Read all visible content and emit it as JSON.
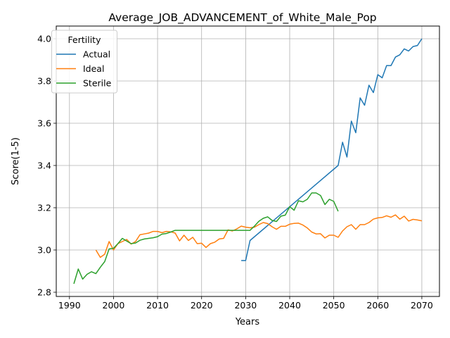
{
  "chart_data": {
    "type": "line",
    "title": "Average_JOB_ADVANCEMENT_of_White_Male_Pop",
    "xlabel": "Years",
    "ylabel": "Score(1-5)",
    "xlim": [
      1987,
      2074
    ],
    "ylim": [
      2.78,
      4.06
    ],
    "xticks": [
      1990,
      2000,
      2010,
      2020,
      2030,
      2040,
      2050,
      2060,
      2070
    ],
    "yticks": [
      2.8,
      3.0,
      3.2,
      3.4,
      3.6,
      3.8,
      4.0
    ],
    "ytick_labels": [
      "2.8",
      "3.0",
      "3.2",
      "3.4",
      "3.6",
      "3.8",
      "4.0"
    ],
    "grid": true,
    "legend": {
      "title": "Fertility",
      "placement": "upper-left"
    },
    "series": [
      {
        "name": "Actual",
        "color": "#1f77b4",
        "x": [
          2029,
          2030,
          2031,
          2051,
          2052,
          2053,
          2054,
          2055,
          2056,
          2057,
          2058,
          2059,
          2060,
          2061,
          2062,
          2063,
          2064,
          2065,
          2066,
          2067,
          2068,
          2069,
          2070
        ],
        "y": [
          2.95,
          2.95,
          3.045,
          3.4,
          3.51,
          3.44,
          3.61,
          3.555,
          3.72,
          3.685,
          3.78,
          3.745,
          3.83,
          3.815,
          3.873,
          3.873,
          3.913,
          3.924,
          3.952,
          3.942,
          3.963,
          3.968,
          4.0
        ]
      },
      {
        "name": "Ideal",
        "color": "#ff7f0e",
        "x": [
          1996,
          1997,
          1998,
          1999,
          2000,
          2001,
          2002,
          2003,
          2004,
          2005,
          2006,
          2007,
          2008,
          2009,
          2010,
          2011,
          2012,
          2013,
          2014,
          2015,
          2016,
          2017,
          2018,
          2019,
          2020,
          2021,
          2022,
          2023,
          2024,
          2025,
          2026,
          2027,
          2028,
          2029,
          2030,
          2031,
          2032,
          2033,
          2034,
          2035,
          2036,
          2037,
          2038,
          2039,
          2040,
          2041,
          2042,
          2043,
          2044,
          2045,
          2046,
          2047,
          2048,
          2049,
          2050,
          2051,
          2052,
          2053,
          2054,
          2055,
          2056,
          2057,
          2058,
          2059,
          2060,
          2061,
          2062,
          2063,
          2064,
          2065,
          2066,
          2067,
          2068,
          2069,
          2070
        ],
        "y": [
          3.0,
          2.965,
          2.98,
          3.04,
          3.0,
          3.03,
          3.04,
          3.05,
          3.028,
          3.04,
          3.072,
          3.076,
          3.08,
          3.088,
          3.088,
          3.082,
          3.088,
          3.086,
          3.08,
          3.043,
          3.07,
          3.045,
          3.06,
          3.03,
          3.032,
          3.012,
          3.03,
          3.037,
          3.052,
          3.055,
          3.095,
          3.09,
          3.1,
          3.113,
          3.108,
          3.105,
          3.108,
          3.12,
          3.13,
          3.125,
          3.11,
          3.098,
          3.112,
          3.112,
          3.122,
          3.126,
          3.127,
          3.118,
          3.104,
          3.085,
          3.076,
          3.077,
          3.057,
          3.07,
          3.07,
          3.06,
          3.09,
          3.11,
          3.12,
          3.098,
          3.12,
          3.12,
          3.13,
          3.146,
          3.152,
          3.154,
          3.162,
          3.155,
          3.166,
          3.146,
          3.16,
          3.137,
          3.145,
          3.142,
          3.138
        ]
      },
      {
        "name": "Sterile",
        "color": "#2ca02c",
        "x": [
          1991,
          1992,
          1993,
          1994,
          1995,
          1996,
          1997,
          1998,
          1999,
          2000,
          2001,
          2002,
          2003,
          2004,
          2005,
          2006,
          2007,
          2008,
          2009,
          2010,
          2011,
          2012,
          2013,
          2014,
          2015,
          2020,
          2025,
          2026,
          2027,
          2028,
          2029,
          2030,
          2031,
          2032,
          2033,
          2034,
          2035,
          2036,
          2037,
          2038,
          2039,
          2040,
          2041,
          2042,
          2043,
          2044,
          2045,
          2046,
          2047,
          2048,
          2049,
          2050,
          2051
        ],
        "y": [
          2.84,
          2.91,
          2.862,
          2.885,
          2.897,
          2.888,
          2.918,
          2.945,
          3.005,
          3.008,
          3.03,
          3.055,
          3.042,
          3.03,
          3.033,
          3.046,
          3.052,
          3.055,
          3.058,
          3.063,
          3.075,
          3.078,
          3.085,
          3.093,
          3.093,
          3.093,
          3.093,
          3.093,
          3.093,
          3.093,
          3.093,
          3.093,
          3.093,
          3.113,
          3.136,
          3.15,
          3.157,
          3.14,
          3.135,
          3.16,
          3.165,
          3.205,
          3.188,
          3.233,
          3.228,
          3.24,
          3.27,
          3.27,
          3.258,
          3.215,
          3.24,
          3.23,
          3.183
        ]
      }
    ]
  }
}
